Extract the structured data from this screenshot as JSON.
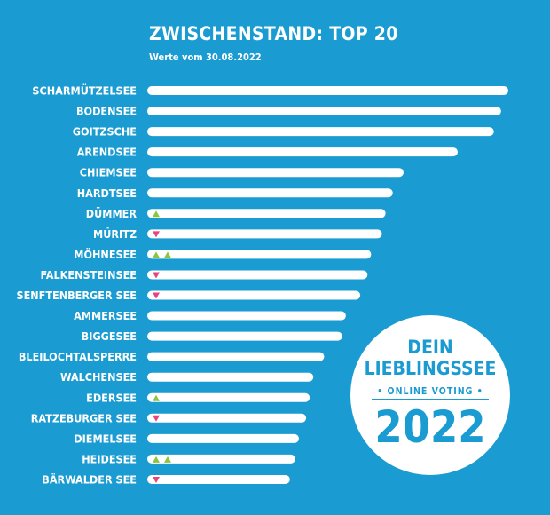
{
  "header": {
    "title": "ZWISCHENSTAND: TOP 20",
    "subtitle": "Werte vom 30.08.2022"
  },
  "badge": {
    "line1": "DEIN",
    "line2": "LIEBLINGSSEE",
    "line3": "• ONLINE VOTING •",
    "year": "2022"
  },
  "colors": {
    "background": "#1a9bd1",
    "bar": "#ffffff",
    "up": "#8cc63f",
    "down": "#e8457c"
  },
  "chart_data": {
    "type": "bar",
    "orientation": "horizontal",
    "title": "ZWISCHENSTAND: TOP 20",
    "subtitle": "Werte vom 30.08.2022",
    "xlim": [
      0,
      100
    ],
    "grid": false,
    "categories": [
      "SCHARMÜTZELSEE",
      "BODENSEE",
      "GOITZSCHE",
      "ARENDSEE",
      "CHIEMSEE",
      "HARDTSEE",
      "DÜMMER",
      "MÜRITZ",
      "MÖHNESEE",
      "FALKENSTEINSEE",
      "SENFTENBERGER SEE",
      "AMMERSEE",
      "BIGGESEE",
      "BLEILOCHTALSPERRE",
      "WALCHENSEE",
      "EDERSEE",
      "RATZEBURGER SEE",
      "DIEMELSEE",
      "HEIDESEE",
      "BÄRWALDER SEE"
    ],
    "values": [
      100,
      98,
      96,
      86,
      71,
      68,
      66,
      65,
      62,
      61,
      59,
      55,
      54,
      49,
      46,
      45,
      44,
      42,
      41,
      39.5
    ],
    "trend": [
      "none",
      "none",
      "none",
      "none",
      "none",
      "none",
      "up",
      "down",
      "up2",
      "down",
      "down",
      "none",
      "none",
      "none",
      "none",
      "up",
      "down",
      "none",
      "up2",
      "down"
    ]
  }
}
